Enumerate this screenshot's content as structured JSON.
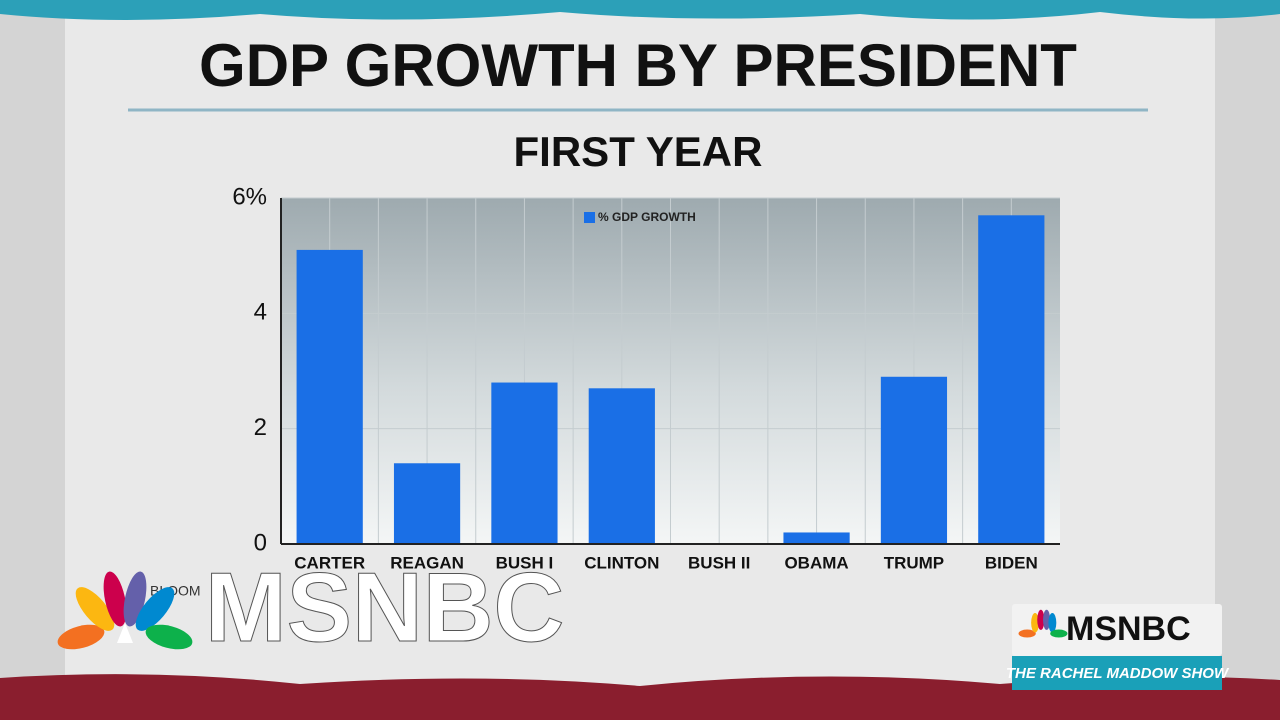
{
  "chart_data": {
    "type": "bar",
    "title": "GDP GROWTH BY PRESIDENT",
    "subtitle": "FIRST YEAR",
    "categories": [
      "CARTER",
      "REAGAN",
      "BUSH I",
      "CLINTON",
      "BUSH II",
      "OBAMA",
      "TRUMP",
      "BIDEN"
    ],
    "series": [
      {
        "name": "% GDP GROWTH",
        "color": "#1a6fe6",
        "values": [
          5.1,
          1.4,
          2.8,
          2.7,
          0.0,
          0.2,
          2.9,
          5.7
        ]
      }
    ],
    "ylim": [
      0,
      6
    ],
    "yticks": [
      0,
      2,
      4,
      {
        "value": 6,
        "label": "6%"
      }
    ],
    "grid": true,
    "source": "BLOOM"
  },
  "overlay": {
    "network_logo": "MSNBC",
    "corner_logo": "MSNBC",
    "show_name": "THE RACHEL MADDOW SHOW"
  }
}
